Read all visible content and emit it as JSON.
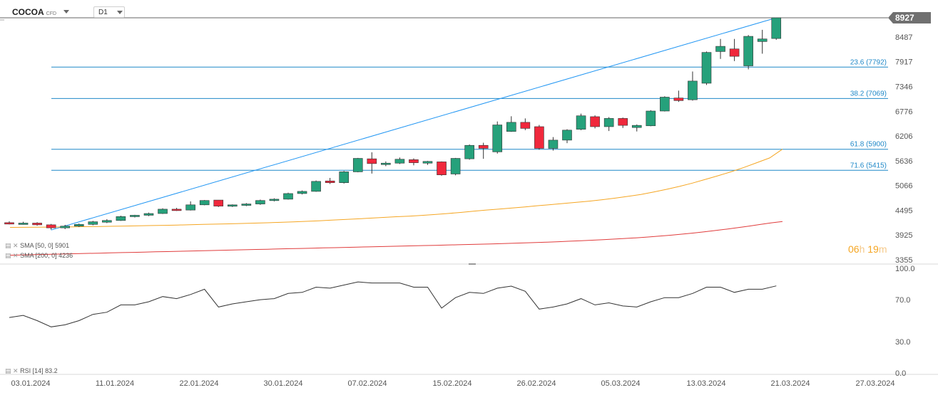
{
  "header": {
    "symbol": "COCOA",
    "symbol_sub": "CFD",
    "timeframe": "D1"
  },
  "countdown": {
    "hours": "06",
    "h": "h",
    "minutes": "19",
    "m": "m"
  },
  "indicators": {
    "sma50_label": "SMA [50, 0] 5901",
    "sma200_label": "SMA [200, 0] 4236",
    "rsi_label": "RSI [14] 83.2"
  },
  "colors": {
    "bull": "#26a17b",
    "bear": "#f0283c",
    "fib": "#1f88c8",
    "trend": "#2196f3",
    "sma50": "#f5a623",
    "sma200": "#e03c3c",
    "rsi": "#333333",
    "price_tag": "#707070"
  },
  "chart_data": [
    {
      "type": "candlestick",
      "symbol": "COCOA",
      "timeframe": "D1",
      "y_ticks": [
        8487,
        7917,
        7346,
        6776,
        6206,
        5636,
        5066,
        4495,
        3925,
        3355
      ],
      "y_range": [
        3355,
        8927
      ],
      "last_price": 8927,
      "x_tick_labels": [
        "03.01.2024",
        "11.01.2024",
        "22.01.2024",
        "30.01.2024",
        "07.02.2024",
        "15.02.2024",
        "26.02.2024",
        "05.03.2024",
        "13.03.2024",
        "21.03.2024",
        "27.03.2024"
      ],
      "candles": [
        {
          "o": 4210,
          "h": 4240,
          "l": 4170,
          "c": 4190
        },
        {
          "o": 4190,
          "h": 4230,
          "l": 4165,
          "c": 4200
        },
        {
          "o": 4200,
          "h": 4220,
          "l": 4140,
          "c": 4160
        },
        {
          "o": 4160,
          "h": 4180,
          "l": 4050,
          "c": 4090
        },
        {
          "o": 4090,
          "h": 4160,
          "l": 4060,
          "c": 4130
        },
        {
          "o": 4130,
          "h": 4190,
          "l": 4110,
          "c": 4170
        },
        {
          "o": 4170,
          "h": 4250,
          "l": 4150,
          "c": 4230
        },
        {
          "o": 4220,
          "h": 4290,
          "l": 4200,
          "c": 4260
        },
        {
          "o": 4260,
          "h": 4370,
          "l": 4250,
          "c": 4350
        },
        {
          "o": 4350,
          "h": 4390,
          "l": 4330,
          "c": 4380
        },
        {
          "o": 4380,
          "h": 4440,
          "l": 4360,
          "c": 4420
        },
        {
          "o": 4420,
          "h": 4540,
          "l": 4410,
          "c": 4520
        },
        {
          "o": 4520,
          "h": 4550,
          "l": 4480,
          "c": 4500
        },
        {
          "o": 4500,
          "h": 4700,
          "l": 4490,
          "c": 4620
        },
        {
          "o": 4620,
          "h": 4730,
          "l": 4610,
          "c": 4720
        },
        {
          "o": 4730,
          "h": 4730,
          "l": 4570,
          "c": 4590
        },
        {
          "o": 4590,
          "h": 4630,
          "l": 4570,
          "c": 4620
        },
        {
          "o": 4610,
          "h": 4660,
          "l": 4590,
          "c": 4640
        },
        {
          "o": 4640,
          "h": 4740,
          "l": 4620,
          "c": 4720
        },
        {
          "o": 4720,
          "h": 4770,
          "l": 4700,
          "c": 4750
        },
        {
          "o": 4750,
          "h": 4900,
          "l": 4740,
          "c": 4880
        },
        {
          "o": 4880,
          "h": 4950,
          "l": 4860,
          "c": 4930
        },
        {
          "o": 4930,
          "h": 5180,
          "l": 4920,
          "c": 5160
        },
        {
          "o": 5170,
          "h": 5240,
          "l": 5100,
          "c": 5130
        },
        {
          "o": 5130,
          "h": 5400,
          "l": 5110,
          "c": 5380
        },
        {
          "o": 5380,
          "h": 5700,
          "l": 5370,
          "c": 5690
        },
        {
          "o": 5680,
          "h": 5830,
          "l": 5340,
          "c": 5570
        },
        {
          "o": 5560,
          "h": 5620,
          "l": 5510,
          "c": 5580
        },
        {
          "o": 5580,
          "h": 5710,
          "l": 5560,
          "c": 5670
        },
        {
          "o": 5660,
          "h": 5690,
          "l": 5530,
          "c": 5590
        },
        {
          "o": 5580,
          "h": 5630,
          "l": 5540,
          "c": 5620
        },
        {
          "o": 5610,
          "h": 5620,
          "l": 5290,
          "c": 5310
        },
        {
          "o": 5330,
          "h": 5700,
          "l": 5300,
          "c": 5690
        },
        {
          "o": 5680,
          "h": 6010,
          "l": 5660,
          "c": 5990
        },
        {
          "o": 5990,
          "h": 6050,
          "l": 5680,
          "c": 5920
        },
        {
          "o": 5840,
          "h": 6540,
          "l": 5800,
          "c": 6460
        },
        {
          "o": 6310,
          "h": 6660,
          "l": 6300,
          "c": 6520
        },
        {
          "o": 6520,
          "h": 6610,
          "l": 6340,
          "c": 6380
        },
        {
          "o": 6420,
          "h": 6460,
          "l": 5890,
          "c": 5920
        },
        {
          "o": 5920,
          "h": 6180,
          "l": 5870,
          "c": 6110
        },
        {
          "o": 6110,
          "h": 6360,
          "l": 6040,
          "c": 6340
        },
        {
          "o": 6360,
          "h": 6720,
          "l": 6340,
          "c": 6670
        },
        {
          "o": 6650,
          "h": 6680,
          "l": 6380,
          "c": 6420
        },
        {
          "o": 6420,
          "h": 6640,
          "l": 6320,
          "c": 6610
        },
        {
          "o": 6610,
          "h": 6630,
          "l": 6390,
          "c": 6450
        },
        {
          "o": 6400,
          "h": 6470,
          "l": 6310,
          "c": 6450
        },
        {
          "o": 6440,
          "h": 6800,
          "l": 6430,
          "c": 6780
        },
        {
          "o": 6780,
          "h": 7120,
          "l": 6770,
          "c": 7100
        },
        {
          "o": 7080,
          "h": 7250,
          "l": 6990,
          "c": 7020
        },
        {
          "o": 7040,
          "h": 7690,
          "l": 7020,
          "c": 7470
        },
        {
          "o": 7420,
          "h": 8150,
          "l": 7380,
          "c": 8130
        },
        {
          "o": 8150,
          "h": 8440,
          "l": 7980,
          "c": 8270
        },
        {
          "o": 8210,
          "h": 8440,
          "l": 7930,
          "c": 8040
        },
        {
          "o": 7820,
          "h": 8530,
          "l": 7740,
          "c": 8500
        },
        {
          "o": 8380,
          "h": 8650,
          "l": 8100,
          "c": 8440
        },
        {
          "o": 8450,
          "h": 8927,
          "l": 8420,
          "c": 8927
        }
      ],
      "sma50": [
        4100,
        4102,
        4105,
        4108,
        4111,
        4114,
        4118,
        4122,
        4127,
        4132,
        4137,
        4143,
        4149,
        4155,
        4162,
        4169,
        4176,
        4183,
        4191,
        4199,
        4208,
        4217,
        4228,
        4240,
        4253,
        4268,
        4283,
        4298,
        4314,
        4330,
        4346,
        4360,
        4378,
        4398,
        4420,
        4445,
        4472,
        4500,
        4522,
        4546,
        4572,
        4600,
        4625,
        4651,
        4678,
        4705,
        4738,
        4775,
        4815,
        4858,
        4915,
        4978,
        5045,
        5120,
        5205,
        5290,
        5380,
        5480,
        5590,
        5700,
        5901
      ],
      "sma200": [
        3460,
        3466,
        3472,
        3478,
        3484,
        3490,
        3496,
        3502,
        3508,
        3514,
        3520,
        3526,
        3532,
        3538,
        3544,
        3550,
        3556,
        3562,
        3568,
        3574,
        3580,
        3586,
        3592,
        3598,
        3604,
        3610,
        3616,
        3622,
        3628,
        3634,
        3640,
        3646,
        3652,
        3658,
        3664,
        3670,
        3676,
        3682,
        3688,
        3694,
        3700,
        3707,
        3714,
        3721,
        3728,
        3735,
        3744,
        3753,
        3762,
        3771,
        3782,
        3794,
        3806,
        3818,
        3832,
        3846,
        3862,
        3880,
        3900,
        3920,
        3945,
        3970,
        3998,
        4028,
        4060,
        4094,
        4130,
        4168,
        4205,
        4236
      ],
      "rsi": [
        53,
        55,
        50,
        44,
        46,
        50,
        56,
        58,
        65,
        65,
        68,
        73,
        71,
        75,
        80,
        63,
        66,
        68,
        70,
        71,
        76,
        77,
        82,
        81,
        84,
        87,
        86,
        86,
        86,
        82,
        82,
        62,
        72,
        77,
        76,
        81,
        83,
        78,
        61,
        63,
        66,
        71,
        65,
        67,
        64,
        63,
        68,
        72,
        72,
        76,
        82,
        82,
        77,
        80,
        80,
        83.2
      ],
      "rsi_ticks": [
        100.0,
        70.0,
        30.0,
        0.0
      ],
      "fibonacci": [
        {
          "label": "23.6 (7792)",
          "value": 7792
        },
        {
          "label": "38.2 (7069)",
          "value": 7069
        },
        {
          "label": "61.8 (5900)",
          "value": 5900
        },
        {
          "label": "71.6 (5415)",
          "value": 5415
        }
      ],
      "trendline": {
        "from_index": 3,
        "from_value": 4040,
        "to_index": 55,
        "to_value": 8927
      }
    }
  ]
}
